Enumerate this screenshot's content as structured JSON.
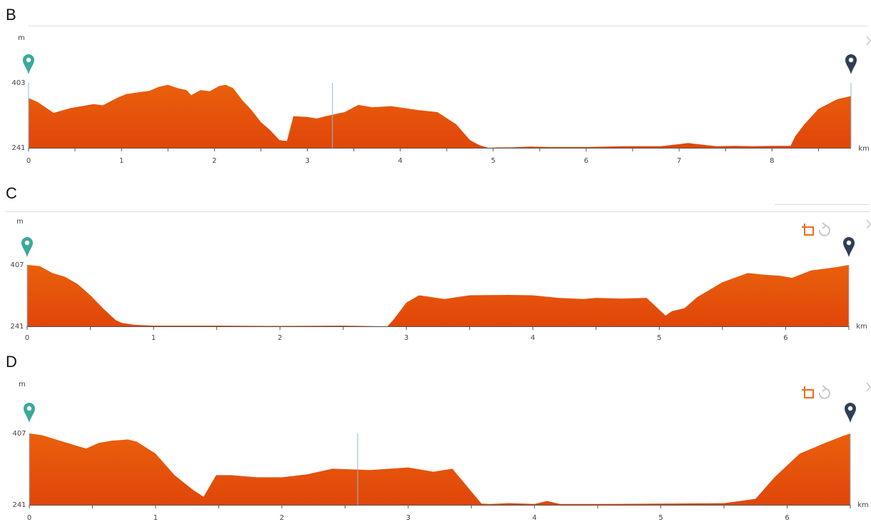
{
  "colors": {
    "fill_top": "#e9600c",
    "fill_bottom": "#e0460a",
    "start_pin": "#3aa99a",
    "end_pin": "#2f3e57",
    "axis": "#555555",
    "marker_line": "#8fb8d6",
    "crop_icon": "#f26b1d",
    "reset_icon": "#c8c8c8"
  },
  "panels": [
    {
      "id": "B",
      "letter": "B",
      "y_unit": "m",
      "x_unit": "km",
      "show_controls": false,
      "chart_data": {
        "type": "area",
        "xlabel": "km",
        "ylabel": "m",
        "xlim": [
          0,
          8.85
        ],
        "ylim": [
          241,
          403
        ],
        "y_ticks": [
          "403",
          "241"
        ],
        "x_ticks": [
          "0",
          "1",
          "2",
          "3",
          "4",
          "5",
          "6",
          "7",
          "8"
        ],
        "marker_x": 3.27,
        "x": [
          0,
          0.1,
          0.27,
          0.45,
          0.7,
          0.8,
          0.95,
          1.05,
          1.2,
          1.3,
          1.4,
          1.5,
          1.6,
          1.7,
          1.75,
          1.85,
          1.95,
          2.05,
          2.12,
          2.2,
          2.3,
          2.4,
          2.5,
          2.6,
          2.7,
          2.78,
          2.85,
          3.0,
          3.1,
          3.2,
          3.3,
          3.4,
          3.55,
          3.7,
          3.9,
          4.2,
          4.4,
          4.6,
          4.75,
          4.85,
          4.9,
          4.95,
          5.05,
          5.2,
          5.4,
          5.6,
          5.8,
          6.0,
          6.4,
          6.8,
          7.0,
          7.1,
          7.2,
          7.4,
          7.6,
          7.8,
          8.0,
          8.2,
          8.25,
          8.35,
          8.5,
          8.7,
          8.85
        ],
        "y": [
          365,
          355,
          328,
          340,
          350,
          347,
          365,
          375,
          380,
          383,
          393,
          398,
          390,
          385,
          372,
          385,
          382,
          395,
          398,
          390,
          360,
          335,
          305,
          285,
          260,
          258,
          320,
          318,
          314,
          320,
          325,
          330,
          348,
          342,
          345,
          335,
          330,
          300,
          260,
          248,
          244,
          241,
          242,
          242,
          244,
          243,
          243,
          243,
          245,
          245,
          250,
          253,
          250,
          245,
          246,
          245,
          246,
          246,
          270,
          300,
          338,
          362,
          370
        ]
      }
    },
    {
      "id": "C",
      "letter": "C",
      "y_unit": "m",
      "x_unit": "km",
      "show_controls": true,
      "chart_data": {
        "type": "area",
        "xlabel": "km",
        "ylabel": "m",
        "xlim": [
          0,
          6.5
        ],
        "ylim": [
          241,
          407
        ],
        "y_ticks": [
          "407",
          "241"
        ],
        "x_ticks": [
          "0",
          "1",
          "2",
          "3",
          "4",
          "5",
          "6"
        ],
        "marker_x": null,
        "x": [
          0,
          0.1,
          0.2,
          0.3,
          0.4,
          0.5,
          0.6,
          0.7,
          0.75,
          0.85,
          1.0,
          1.5,
          2.0,
          2.5,
          2.85,
          2.9,
          3.0,
          3.1,
          3.3,
          3.5,
          3.8,
          4.0,
          4.2,
          4.4,
          4.5,
          4.7,
          4.9,
          5.05,
          5.1,
          5.2,
          5.3,
          5.5,
          5.7,
          5.85,
          5.95,
          6.05,
          6.2,
          6.4,
          6.5
        ],
        "y": [
          407,
          404,
          385,
          375,
          355,
          325,
          290,
          258,
          250,
          245,
          243,
          243,
          242,
          243,
          241,
          260,
          305,
          325,
          315,
          325,
          326,
          325,
          318,
          315,
          318,
          316,
          318,
          270,
          282,
          290,
          320,
          360,
          385,
          380,
          378,
          372,
          392,
          401,
          407
        ]
      }
    },
    {
      "id": "D",
      "letter": "D",
      "y_unit": "m",
      "x_unit": "km",
      "show_controls": true,
      "chart_data": {
        "type": "area",
        "xlabel": "km",
        "ylabel": "m",
        "xlim": [
          0,
          6.5
        ],
        "ylim": [
          241,
          407
        ],
        "y_ticks": [
          "407",
          "241"
        ],
        "x_ticks": [
          "0",
          "1",
          "2",
          "3",
          "4",
          "5",
          "6"
        ],
        "marker_x": 2.6,
        "x": [
          0,
          0.1,
          0.3,
          0.45,
          0.55,
          0.65,
          0.78,
          0.85,
          1.0,
          1.15,
          1.3,
          1.38,
          1.48,
          1.6,
          1.8,
          2.0,
          2.2,
          2.4,
          2.7,
          3.0,
          3.2,
          3.35,
          3.5,
          3.58,
          3.65,
          3.8,
          4.0,
          4.1,
          4.2,
          4.5,
          5.0,
          5.5,
          5.75,
          5.9,
          6.1,
          6.3,
          6.45,
          6.5
        ],
        "y": [
          407,
          403,
          385,
          372,
          385,
          390,
          393,
          388,
          360,
          310,
          275,
          260,
          310,
          310,
          305,
          305,
          312,
          325,
          322,
          328,
          318,
          325,
          272,
          244,
          243,
          245,
          243,
          250,
          243,
          243,
          244,
          245,
          255,
          305,
          360,
          385,
          402,
          407
        ]
      }
    }
  ]
}
